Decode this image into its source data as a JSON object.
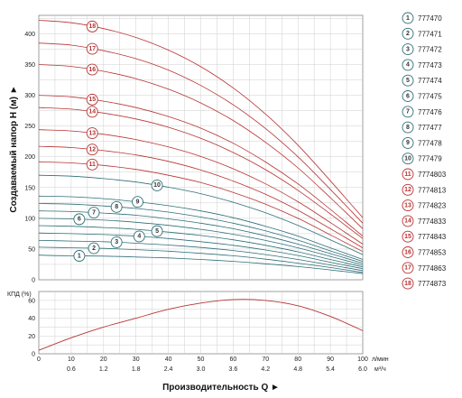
{
  "chart_data": [
    {
      "type": "line",
      "title": "",
      "ylabel": "Создаваемый напор H (м) ►",
      "xlabel": "",
      "ylim": [
        0,
        430
      ],
      "xlim": [
        0,
        100
      ],
      "yticks": [
        "0",
        "50",
        "100",
        "150",
        "200",
        "250",
        "300",
        "350",
        "400"
      ],
      "grid": true,
      "legend_placement": "right",
      "x": [
        0,
        10,
        20,
        30,
        40,
        50,
        60,
        70,
        80,
        90,
        100
      ],
      "series": [
        {
          "name": "777470",
          "label": "1",
          "color": "#2e6f78",
          "values": [
            40,
            39,
            38.5,
            37,
            35.5,
            33,
            30,
            26,
            21.5,
            16,
            10
          ]
        },
        {
          "name": "777471",
          "label": "2",
          "color": "#2e6f78",
          "values": [
            53,
            52,
            51,
            49,
            46.5,
            43,
            39,
            33.5,
            27,
            20,
            12
          ]
        },
        {
          "name": "777472",
          "label": "3",
          "color": "#2e6f78",
          "values": [
            64,
            63,
            62,
            59.5,
            56.5,
            52.5,
            47.5,
            41,
            33,
            24,
            15
          ]
        },
        {
          "name": "777473",
          "label": "4",
          "color": "#2e6f78",
          "values": [
            76,
            75,
            73.5,
            71,
            67,
            62,
            56,
            48.5,
            39.5,
            28.5,
            18
          ]
        },
        {
          "name": "777474",
          "label": "5",
          "color": "#2e6f78",
          "values": [
            88,
            87,
            85,
            82,
            77.5,
            72,
            65,
            56,
            45.5,
            33,
            21
          ]
        },
        {
          "name": "777475",
          "label": "6",
          "color": "#2e6f78",
          "values": [
            100,
            99,
            97,
            93.5,
            88.5,
            82,
            74,
            64,
            52,
            38,
            24
          ]
        },
        {
          "name": "777476",
          "label": "7",
          "color": "#2e6f78",
          "values": [
            112,
            111,
            108.5,
            105,
            99,
            92,
            83,
            71.5,
            58,
            42.5,
            27
          ]
        },
        {
          "name": "777477",
          "label": "8",
          "color": "#2e6f78",
          "values": [
            124,
            123,
            120,
            116,
            110,
            102,
            92,
            79.5,
            64.5,
            47,
            30
          ]
        },
        {
          "name": "777478",
          "label": "9",
          "color": "#2e6f78",
          "values": [
            136,
            135,
            132,
            127,
            120.5,
            112,
            101,
            87,
            71,
            52,
            33
          ]
        },
        {
          "name": "777479",
          "label": "10",
          "color": "#2e6f78",
          "values": [
            170,
            168.5,
            164.5,
            159,
            150.5,
            140,
            126,
            109,
            88.5,
            65,
            41
          ]
        },
        {
          "name": "7774803",
          "label": "11",
          "color": "#b83232",
          "values": [
            192,
            190,
            186,
            179.5,
            170,
            158,
            142,
            123,
            100,
            73,
            46
          ]
        },
        {
          "name": "7774813",
          "label": "12",
          "color": "#b83232",
          "values": [
            217,
            215,
            210,
            203,
            192.5,
            178.5,
            160.5,
            139,
            113,
            83,
            52
          ]
        },
        {
          "name": "7774823",
          "label": "13",
          "color": "#b83232",
          "values": [
            244,
            242,
            236.5,
            228,
            216,
            200.5,
            180.5,
            156,
            127,
            93,
            58
          ]
        },
        {
          "name": "7774833",
          "label": "14",
          "color": "#b83232",
          "values": [
            280,
            277.5,
            271,
            261.5,
            248,
            230,
            207,
            179,
            145.5,
            107,
            67
          ]
        },
        {
          "name": "7774843",
          "label": "15",
          "color": "#b83232",
          "values": [
            300,
            297.5,
            290.5,
            280,
            265.5,
            246.5,
            222,
            191.5,
            156,
            114.5,
            71
          ]
        },
        {
          "name": "7774853",
          "label": "16",
          "color": "#b83232",
          "values": [
            350,
            347,
            339,
            327,
            310,
            287.5,
            259,
            223.5,
            182,
            133.5,
            83
          ]
        },
        {
          "name": "7774863",
          "label": "17",
          "color": "#b83232",
          "values": [
            385,
            381.5,
            372.5,
            359.5,
            341,
            316,
            284.5,
            246,
            200,
            147,
            92
          ]
        },
        {
          "name": "7774873",
          "label": "18",
          "color": "#b83232",
          "values": [
            422,
            418,
            408.5,
            394,
            373.5,
            346.5,
            312,
            269.5,
            219,
            161,
            101
          ]
        }
      ],
      "curve_label_positions_x": [
        12.5,
        17,
        24,
        31,
        36.5,
        12.5,
        17,
        24,
        30.5,
        36.5,
        16.5,
        16.5,
        16.5,
        16.5,
        16.5,
        16.5,
        16.5,
        16.5
      ]
    },
    {
      "type": "line",
      "title": "",
      "ylabel": "КПД (%)",
      "xlabel": "Производительность Q ►",
      "ylim": [
        0,
        70
      ],
      "yticks": [
        "0",
        "20",
        "40",
        "60"
      ],
      "xlim": [
        0,
        100
      ],
      "grid": true,
      "x_ticks_primary": {
        "unit": "л/мин",
        "labels": [
          "0",
          "10",
          "20",
          "30",
          "40",
          "50",
          "60",
          "70",
          "80",
          "90",
          "100"
        ]
      },
      "x_ticks_secondary": {
        "unit": "м³/ч",
        "labels": [
          "0.6",
          "1.2",
          "1.8",
          "2.4",
          "3.0",
          "3.6",
          "4.2",
          "4.8",
          "5.4",
          "6.0"
        ]
      },
      "series": [
        {
          "name": "",
          "color": "#b83232",
          "x": [
            0,
            10,
            20,
            30,
            40,
            50,
            60,
            70,
            80,
            90,
            100
          ],
          "values": [
            4,
            18,
            30,
            40,
            50,
            57,
            61,
            60,
            54,
            42,
            26
          ]
        }
      ]
    }
  ]
}
